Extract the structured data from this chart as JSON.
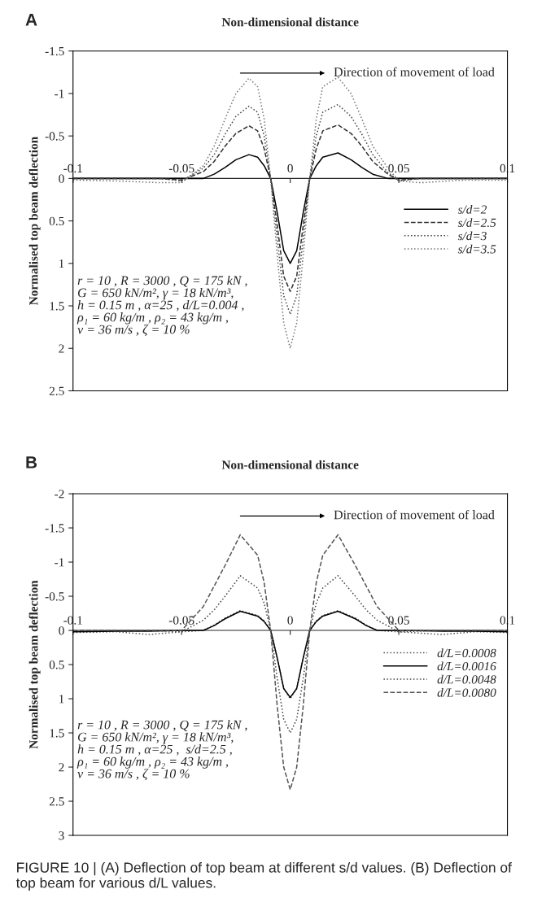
{
  "chart_data": [
    {
      "type": "line",
      "title": "A",
      "xlabel": "Non-dimensional distance",
      "ylabel": "Normalised top beam deflection",
      "x": [
        -0.1,
        -0.08,
        -0.06,
        -0.05,
        -0.04,
        -0.035,
        -0.03,
        -0.025,
        -0.019,
        -0.015,
        -0.012,
        -0.009,
        -0.006,
        -0.003,
        0,
        0.003,
        0.006,
        0.009,
        0.012,
        0.015,
        0.022,
        0.028,
        0.033,
        0.038,
        0.045,
        0.05,
        0.06,
        0.08,
        0.1
      ],
      "series": [
        {
          "name": "s/d=2",
          "color": "#000000",
          "line_style": "solid",
          "values": [
            0,
            0,
            0,
            0,
            0,
            -0.05,
            -0.13,
            -0.22,
            -0.28,
            -0.25,
            -0.15,
            0,
            0.4,
            0.85,
            1.0,
            0.85,
            0.4,
            0,
            -0.15,
            -0.25,
            -0.3,
            -0.22,
            -0.13,
            -0.05,
            0,
            0,
            0,
            0,
            0
          ]
        },
        {
          "name": "s/d=2.5",
          "color": "#333333",
          "line_style": "dashed",
          "values": [
            0,
            0,
            0,
            0.02,
            -0.08,
            -0.2,
            -0.38,
            -0.53,
            -0.62,
            -0.56,
            -0.35,
            0,
            0.55,
            1.15,
            1.33,
            1.15,
            0.55,
            0,
            -0.35,
            -0.56,
            -0.63,
            -0.53,
            -0.38,
            -0.2,
            -0.05,
            0.02,
            0,
            0,
            0
          ]
        },
        {
          "name": "s/d=3",
          "color": "#444444",
          "line_style": "dotted",
          "values": [
            0,
            0,
            0,
            0.03,
            -0.12,
            -0.28,
            -0.52,
            -0.73,
            -0.85,
            -0.78,
            -0.5,
            0,
            0.7,
            1.38,
            1.6,
            1.38,
            0.7,
            0,
            -0.5,
            -0.78,
            -0.87,
            -0.73,
            -0.52,
            -0.28,
            -0.07,
            0.03,
            0,
            0,
            0
          ]
        },
        {
          "name": "s/d=3.5",
          "color": "#777777",
          "line_style": "dotted",
          "values": [
            0.02,
            0.03,
            0.05,
            0.05,
            -0.15,
            -0.38,
            -0.7,
            -1.0,
            -1.18,
            -1.08,
            -0.7,
            0,
            0.9,
            1.7,
            2.0,
            1.7,
            0.9,
            0,
            -0.7,
            -1.08,
            -1.19,
            -1.0,
            -0.7,
            -0.38,
            -0.12,
            0.03,
            0.05,
            0.02,
            0.02
          ]
        }
      ],
      "xlim": [
        -0.1,
        0.1
      ],
      "xticks": [
        -0.1,
        -0.05,
        0,
        0.05,
        0.1
      ],
      "ylim": [
        2.5,
        -1.5
      ],
      "yticks": [
        -1.5,
        -1,
        -0.5,
        0,
        0.5,
        1,
        1.5,
        2,
        2.5
      ],
      "legend": "right",
      "grid": false,
      "annotations": [
        "Direction of movement of load",
        "r = 10 , R = 3000 , Q = 175 kN ,\nG = 650 kN/m², γ = 18 kN/m³,\nh = 0.15 m , α=25 , d/L=0.004 ,\nρ₁ = 60 kg/m , ρ₂ = 43 kg/m ,\nv = 36 m/s , ζ = 10 %"
      ]
    },
    {
      "type": "line",
      "title": "B",
      "xlabel": "Non-dimensional distance",
      "ylabel": "Normalised top beam deflection",
      "x": [
        -0.1,
        -0.08,
        -0.065,
        -0.05,
        -0.04,
        -0.035,
        -0.03,
        -0.023,
        -0.015,
        -0.012,
        -0.009,
        -0.006,
        -0.003,
        0,
        0.003,
        0.006,
        0.009,
        0.012,
        0.015,
        0.022,
        0.03,
        0.035,
        0.04,
        0.05,
        0.07,
        0.085,
        0.1
      ],
      "series": [
        {
          "name": "d/L=0.0008",
          "color": "#555555",
          "line_style": "dotted",
          "values": [
            0.03,
            0.02,
            0.06,
            0.02,
            0,
            -0.08,
            -0.18,
            -0.29,
            -0.22,
            -0.14,
            0,
            0.4,
            0.85,
            1.0,
            0.85,
            0.4,
            0,
            -0.14,
            -0.22,
            -0.29,
            -0.18,
            -0.08,
            0,
            0.02,
            0.06,
            0.02,
            0.03
          ]
        },
        {
          "name": "d/L=0.0016",
          "color": "#000000",
          "line_style": "solid",
          "values": [
            0.02,
            0.01,
            0.01,
            0,
            0,
            -0.07,
            -0.17,
            -0.28,
            -0.21,
            -0.13,
            0,
            0.4,
            0.85,
            0.98,
            0.85,
            0.4,
            0,
            -0.13,
            -0.21,
            -0.28,
            -0.17,
            -0.07,
            0,
            0,
            0.01,
            0.01,
            0.02
          ]
        },
        {
          "name": "d/L=0.0048",
          "color": "#444444",
          "line_style": "dotted",
          "values": [
            0,
            0,
            0,
            0.02,
            -0.15,
            -0.3,
            -0.5,
            -0.8,
            -0.62,
            -0.4,
            0,
            0.7,
            1.3,
            1.5,
            1.3,
            0.7,
            0,
            -0.4,
            -0.62,
            -0.8,
            -0.5,
            -0.3,
            -0.15,
            0.02,
            0,
            0,
            0
          ]
        },
        {
          "name": "d/L=0.0080",
          "color": "#555555",
          "line_style": "dashed",
          "values": [
            0,
            0,
            0,
            0,
            -0.35,
            -0.65,
            -0.95,
            -1.4,
            -1.1,
            -0.7,
            0,
            1.1,
            2.0,
            2.33,
            2.0,
            1.1,
            0,
            -0.7,
            -1.1,
            -1.4,
            -0.95,
            -0.65,
            -0.35,
            0,
            0,
            0,
            0
          ]
        }
      ],
      "xlim": [
        -0.1,
        0.1
      ],
      "xticks": [
        -0.1,
        -0.05,
        0,
        0.05,
        0.1
      ],
      "ylim": [
        3,
        -2
      ],
      "yticks": [
        -2,
        -1.5,
        -1,
        -0.5,
        0,
        0.5,
        1,
        1.5,
        2,
        2.5,
        3
      ],
      "legend": "right",
      "grid": false,
      "annotations": [
        "Direction of movement of load",
        "r = 10 , R = 3000 , Q = 175 kN ,\nG = 650 kN/m², γ = 18 kN/m³,\nh = 0.15 m , α=25 ,  s/d=2.5 ,\nρ₁ = 60 kg/m , ρ₂ = 43 kg/m ,\nv = 36 m/s , ζ = 10 %",
        "FIGURE 10 | (A) Deflection of top beam at different s/d values. (B) Deflection of top beam for various d/L values."
      ]
    }
  ]
}
